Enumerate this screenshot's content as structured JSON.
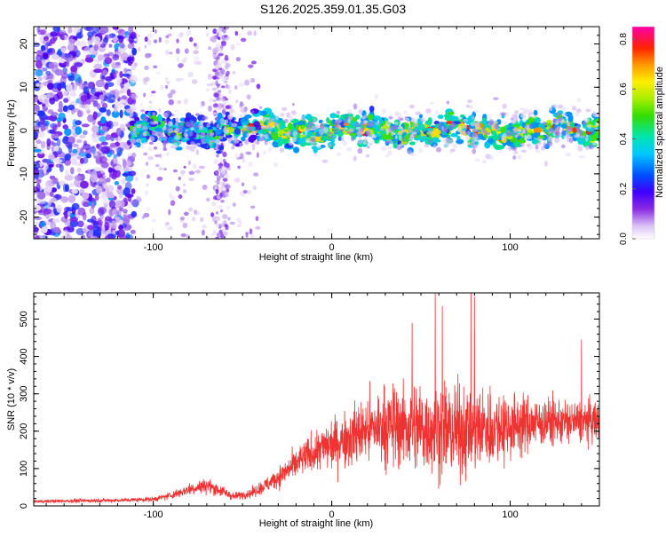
{
  "title": "S126.2025.359.01.35.G03",
  "chart_data": [
    {
      "type": "heatmap",
      "name": "spectrogram",
      "xlabel": "Height of straight line (km)",
      "ylabel": "Frequency (Hz)",
      "xlim": [
        -167,
        150
      ],
      "ylim": [
        -25,
        24
      ],
      "xticks": [
        -100,
        0,
        100
      ],
      "yticks": [
        -20,
        -10,
        0,
        10,
        20
      ],
      "grid": false,
      "description_values": {
        "band_center_hz": 0,
        "band_halfwidth_hz": 4,
        "noise_region_below_km": -55
      },
      "colorbar": {
        "label": "Normalized spectral amplitude",
        "range": [
          0.0,
          0.85
        ],
        "ticks": [
          0.0,
          0.2,
          0.4,
          0.6,
          0.8
        ],
        "tick_labels": [
          "0.0",
          "0.2",
          "0.4",
          "0.6",
          "0.8"
        ],
        "colormap": "rainbow (white→violet→blue→cyan→green→yellow→orange→red→magenta)"
      }
    },
    {
      "type": "line",
      "name": "snr",
      "xlabel": "Height of straight line (km)",
      "ylabel": "SNR (10 * v/v)",
      "xlim": [
        -167,
        150
      ],
      "ylim": [
        0,
        570
      ],
      "xticks": [
        -100,
        0,
        100
      ],
      "yticks": [
        0,
        100,
        200,
        300,
        400,
        500
      ],
      "color": "#ee3333",
      "envelope": {
        "x": [
          -167,
          -140,
          -120,
          -100,
          -90,
          -80,
          -70,
          -62,
          -55,
          -45,
          -35,
          -25,
          -15,
          -5,
          5,
          15,
          25,
          35,
          50,
          60,
          70,
          80,
          90,
          100,
          110,
          120,
          130,
          140,
          150
        ],
        "mean": [
          12,
          14,
          15,
          18,
          28,
          45,
          55,
          40,
          25,
          35,
          60,
          95,
          130,
          155,
          175,
          195,
          210,
          215,
          210,
          205,
          200,
          205,
          210,
          215,
          220,
          225,
          225,
          225,
          225
        ],
        "amplitude": [
          6,
          8,
          8,
          10,
          15,
          25,
          30,
          25,
          15,
          20,
          35,
          50,
          70,
          90,
          110,
          130,
          150,
          170,
          185,
          190,
          190,
          180,
          160,
          140,
          110,
          100,
          90,
          85,
          85
        ]
      },
      "peaks": [
        {
          "x": 58,
          "y": 570
        },
        {
          "x": 78,
          "y": 570
        },
        {
          "x": 62,
          "y": 535
        },
        {
          "x": 80,
          "y": 560
        },
        {
          "x": 45,
          "y": 490
        },
        {
          "x": 140,
          "y": 445
        }
      ]
    }
  ]
}
